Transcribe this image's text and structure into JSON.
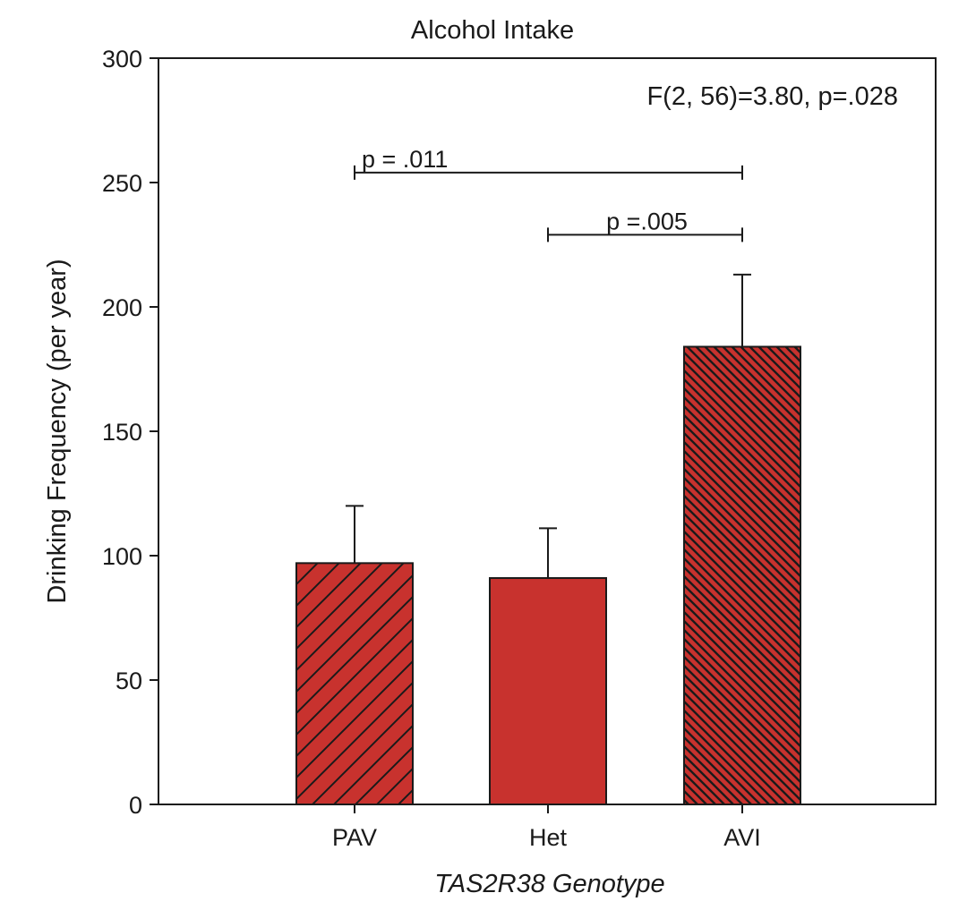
{
  "chart_data": {
    "type": "bar",
    "title": "Alcohol Intake",
    "xlabel": "TAS2R38 Genotype",
    "ylabel": "Drinking Frequency (per year)",
    "ylim": [
      0,
      300
    ],
    "yticks": [
      0,
      50,
      100,
      150,
      200,
      250,
      300
    ],
    "grid": false,
    "categories": [
      "PAV",
      "Het",
      "AVI"
    ],
    "values": [
      97,
      91,
      184
    ],
    "errors": [
      23,
      20,
      29
    ],
    "fills": [
      "hatch-sparse",
      "solid",
      "hatch-dense"
    ],
    "bar_color": "#c8322e",
    "annotations": {
      "stat": "F(2, 56)=3.80, p=.028",
      "comparisons": [
        {
          "from": "PAV",
          "to": "AVI",
          "y": 254,
          "label": "p = .011"
        },
        {
          "from": "Het",
          "to": "AVI",
          "y": 229,
          "label": "p =.005"
        }
      ]
    }
  }
}
